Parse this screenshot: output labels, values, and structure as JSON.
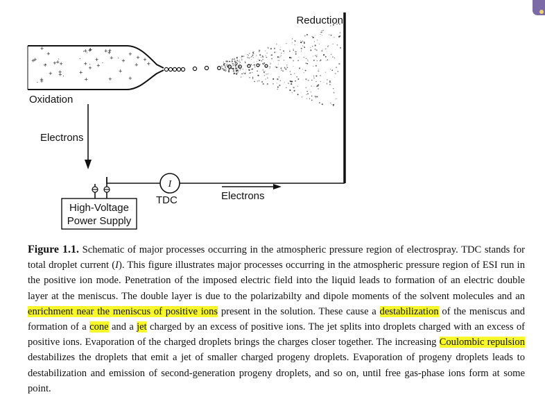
{
  "diagram": {
    "labels": {
      "reduction": "Reduction",
      "oxidation": "Oxidation",
      "electrons_down": "Electrons",
      "power_supply_line1": "High-Voltage",
      "power_supply_line2": "Power Supply",
      "meter_symbol": "I",
      "tdc": "TDC",
      "electrons_right": "Electrons"
    }
  },
  "caption": {
    "title": "Figure 1.1.",
    "part1": " Schematic of major processes occurring in the atmospheric pressure region of electrospray. TDC stands for total droplet current (",
    "italic_I": "I",
    "part2": "). This figure illustrates major processes occurring in the atmospheric pressure region of ESI run in the positive ion mode. Penetration of the imposed electric field into the liquid leads to formation of an electric double layer at the meniscus. The double layer is due to the polarizabilty and dipole moments of the solvent molecules and an ",
    "hl1": "enrichment near the meniscus of positive ions",
    "part3": " present in the solution. These cause a ",
    "hl2": "destabilization",
    "part4": " of the meniscus and formation of a ",
    "hl3": "cone",
    "part5": " and a ",
    "hl4": "jet",
    "part6": " charged by an excess of positive ions. The jet splits into droplets charged with an excess of positive ions. Evaporation of the charged droplets brings the charges closer together. The increasing ",
    "hl5": "Coulombic repulsion",
    "part7": " destabilizes the droplets that emit a jet of smaller charged progeny droplets. Evaporation of progeny droplets leads to destabilization and emission of second-generation progeny droplets, and so on, until free gas-phase ions form at some point."
  }
}
